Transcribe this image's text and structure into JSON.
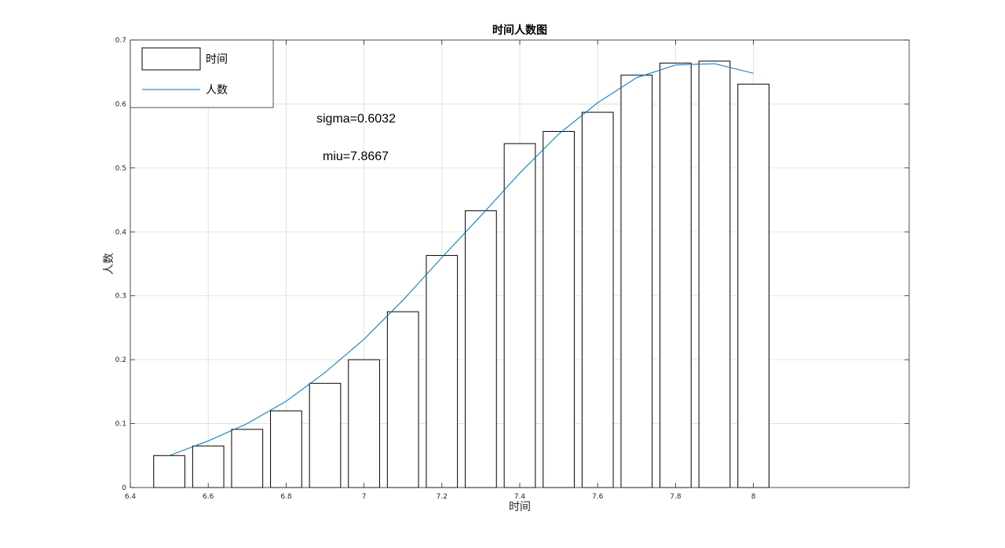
{
  "chart_data": {
    "type": "bar",
    "title": "时间人数图",
    "xlabel": "时间",
    "ylabel": "人数",
    "xlim": [
      6.4,
      8.4
    ],
    "ylim": [
      0,
      0.7
    ],
    "xticks": [
      6.4,
      6.6,
      6.8,
      7,
      7.2,
      7.4,
      7.6,
      7.8,
      8
    ],
    "xtick_labels": [
      "6.4",
      "6.6",
      "6.8",
      "7",
      "7.2",
      "7.4",
      "7.6",
      "7.8",
      "8"
    ],
    "yticks": [
      0,
      0.1,
      0.2,
      0.3,
      0.4,
      0.5,
      0.6,
      0.7
    ],
    "ytick_labels": [
      "0",
      "0.1",
      "0.2",
      "0.3",
      "0.4",
      "0.5",
      "0.6",
      "0.7"
    ],
    "grid": true,
    "legend_position": "top-left",
    "series": [
      {
        "name": "时间",
        "kind": "bar",
        "x": [
          6.5,
          6.6,
          6.7,
          6.8,
          6.9,
          7.0,
          7.1,
          7.2,
          7.3,
          7.4,
          7.5,
          7.6,
          7.7,
          7.8,
          7.9,
          8.0
        ],
        "values": [
          0.05,
          0.065,
          0.091,
          0.12,
          0.163,
          0.2,
          0.275,
          0.363,
          0.433,
          0.538,
          0.557,
          0.587,
          0.645,
          0.664,
          0.667,
          0.631
        ],
        "color": "#000000"
      },
      {
        "name": "人数",
        "kind": "line",
        "x": [
          6.5,
          6.6,
          6.7,
          6.8,
          6.9,
          7.0,
          7.1,
          7.2,
          7.3,
          7.4,
          7.5,
          7.6,
          7.7,
          7.8,
          7.9,
          8.0
        ],
        "values": [
          0.05,
          0.073,
          0.1,
          0.135,
          0.18,
          0.232,
          0.293,
          0.36,
          0.425,
          0.492,
          0.553,
          0.602,
          0.641,
          0.661,
          0.663,
          0.648
        ],
        "color": "#0072BD"
      }
    ],
    "annotations": [
      "sigma=0.6032",
      "miu=7.8667"
    ]
  }
}
